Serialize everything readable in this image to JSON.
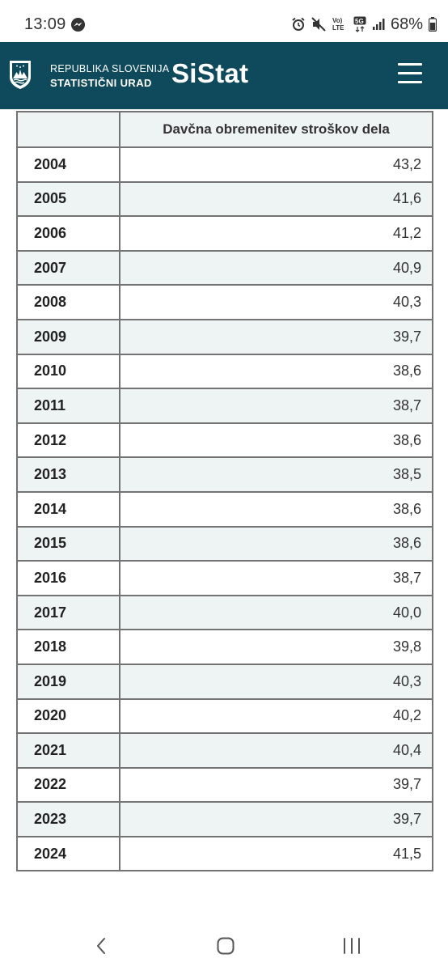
{
  "status_bar": {
    "time": "13:09",
    "battery": "68%",
    "icons": [
      "messenger-icon",
      "alarm-icon",
      "mute-icon",
      "volte-icon",
      "5g-icon",
      "signal-icon",
      "battery-icon"
    ],
    "lte_label": "Vo) LTE",
    "net_label": "5G"
  },
  "header": {
    "org_line1": "REPUBLIKA SLOVENIJA",
    "org_line2": "STATISTIČNI URAD",
    "brand": "SiStat",
    "background": "#0e4a5b"
  },
  "table": {
    "corner": "",
    "column_header": "Davčna obremenitev stroškov dela",
    "rows": [
      {
        "year": "2004",
        "value": "43,2"
      },
      {
        "year": "2005",
        "value": "41,6"
      },
      {
        "year": "2006",
        "value": "41,2"
      },
      {
        "year": "2007",
        "value": "40,9"
      },
      {
        "year": "2008",
        "value": "40,3"
      },
      {
        "year": "2009",
        "value": "39,7"
      },
      {
        "year": "2010",
        "value": "38,6"
      },
      {
        "year": "2011",
        "value": "38,7"
      },
      {
        "year": "2012",
        "value": "38,6"
      },
      {
        "year": "2013",
        "value": "38,5"
      },
      {
        "year": "2014",
        "value": "38,6"
      },
      {
        "year": "2015",
        "value": "38,6"
      },
      {
        "year": "2016",
        "value": "38,7"
      },
      {
        "year": "2017",
        "value": "40,0"
      },
      {
        "year": "2018",
        "value": "39,8"
      },
      {
        "year": "2019",
        "value": "40,3"
      },
      {
        "year": "2020",
        "value": "40,2"
      },
      {
        "year": "2021",
        "value": "40,4"
      },
      {
        "year": "2022",
        "value": "39,7"
      },
      {
        "year": "2023",
        "value": "39,7"
      },
      {
        "year": "2024",
        "value": "41,5"
      }
    ]
  },
  "nav": {
    "icons": [
      "back-icon",
      "home-icon",
      "recent-apps-icon"
    ]
  }
}
